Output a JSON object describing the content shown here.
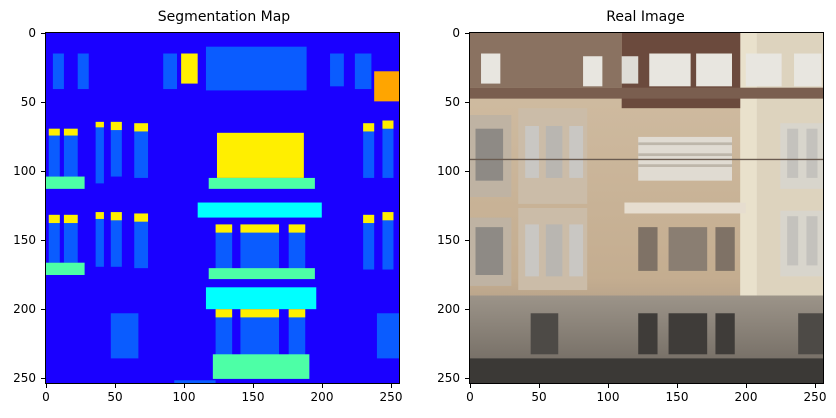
{
  "panels": [
    {
      "title": "Segmentation Map",
      "x_ticks": [
        "0",
        "50",
        "100",
        "150",
        "200",
        "250"
      ],
      "y_ticks": [
        "0",
        "50",
        "100",
        "150",
        "200",
        "250"
      ]
    },
    {
      "title": "Real Image",
      "x_ticks": [
        "0",
        "50",
        "100",
        "150",
        "200",
        "250"
      ],
      "y_ticks": [
        "0",
        "50",
        "100",
        "150",
        "200",
        "250"
      ]
    }
  ],
  "colors": {
    "background": "#1a00ff",
    "window": "#0a5cff",
    "sill": "#4dffa6",
    "yellow": "#ffef00",
    "cyan": "#00ffff",
    "orange": "#ffa500"
  }
}
